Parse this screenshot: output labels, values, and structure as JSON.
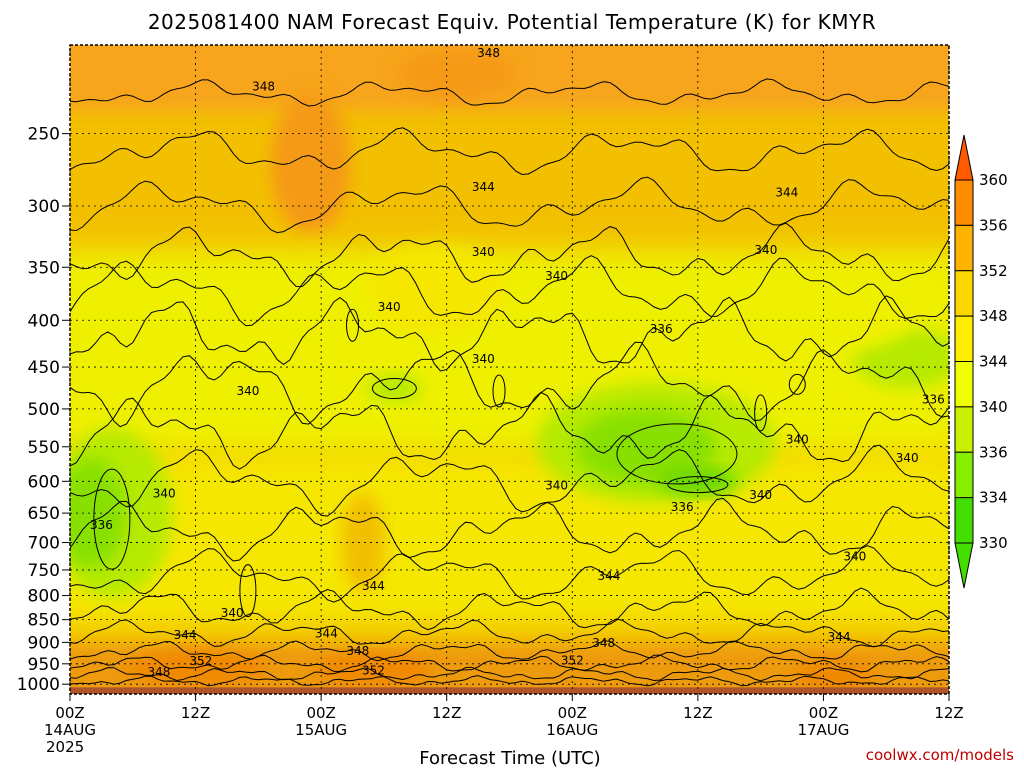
{
  "chart_data": {
    "type": "heatmap",
    "title": "2025081400 NAM Forecast Equiv. Potential Temperature (K) for KMYR",
    "xlabel": "Forecast Time (UTC)",
    "ylabel": "",
    "y_scale": "log-pressure",
    "ylim": [
      1025,
      200
    ],
    "y_ticks": [
      250,
      300,
      350,
      400,
      450,
      500,
      550,
      600,
      650,
      700,
      750,
      800,
      850,
      900,
      950,
      1000
    ],
    "xlim_hours": [
      0,
      84
    ],
    "x_ticks": [
      {
        "hour": 0,
        "label": "00Z",
        "sub": "14AUG",
        "sub2": "2025"
      },
      {
        "hour": 12,
        "label": "12Z",
        "sub": "",
        "sub2": ""
      },
      {
        "hour": 24,
        "label": "00Z",
        "sub": "15AUG",
        "sub2": ""
      },
      {
        "hour": 36,
        "label": "12Z",
        "sub": "",
        "sub2": ""
      },
      {
        "hour": 48,
        "label": "00Z",
        "sub": "16AUG",
        "sub2": ""
      },
      {
        "hour": 60,
        "label": "12Z",
        "sub": "",
        "sub2": ""
      },
      {
        "hour": 72,
        "label": "00Z",
        "sub": "17AUG",
        "sub2": ""
      },
      {
        "hour": 84,
        "label": "12Z",
        "sub": "",
        "sub2": ""
      }
    ],
    "grid": true,
    "colorbar": {
      "levels": [
        330,
        334,
        336,
        340,
        344,
        348,
        352,
        356,
        360
      ],
      "colors": [
        "#44dd00",
        "#88ee00",
        "#c8f000",
        "#eeff00",
        "#ffee00",
        "#ffd700",
        "#ffb300",
        "#ff8c00",
        "#ff5a00"
      ]
    },
    "background_colors": {
      "base": "#f2c000",
      "upper": "#f7a51e",
      "upper_deep": "#f59a16",
      "mid_high": "#f7cf00",
      "mid": "#eef000",
      "mid2": "#f5e700",
      "low_green": "#b6ea00",
      "green": "#88e000",
      "green_deep": "#6ad800",
      "boundary": "#ee9a08",
      "boundary_deep": "#f08800",
      "ground": "#b0552a"
    },
    "contour_labels": [
      {
        "text": "348",
        "hour": 40.0,
        "p": 204
      },
      {
        "text": "348",
        "hour": 18.5,
        "p": 222
      },
      {
        "text": "344",
        "hour": 39.5,
        "p": 286
      },
      {
        "text": "344",
        "hour": 68.5,
        "p": 290
      },
      {
        "text": "340",
        "hour": 39.5,
        "p": 337
      },
      {
        "text": "340",
        "hour": 46.5,
        "p": 358
      },
      {
        "text": "340",
        "hour": 66.5,
        "p": 335
      },
      {
        "text": "340",
        "hour": 30.5,
        "p": 387
      },
      {
        "text": "336",
        "hour": 56.5,
        "p": 409
      },
      {
        "text": "340",
        "hour": 39.5,
        "p": 441
      },
      {
        "text": "340",
        "hour": 17.0,
        "p": 478
      },
      {
        "text": "336",
        "hour": 82.5,
        "p": 488
      },
      {
        "text": "340",
        "hour": 69.5,
        "p": 540
      },
      {
        "text": "340",
        "hour": 80.0,
        "p": 566
      },
      {
        "text": "340",
        "hour": 46.5,
        "p": 606
      },
      {
        "text": "340",
        "hour": 9.0,
        "p": 619
      },
      {
        "text": "340",
        "hour": 66.0,
        "p": 621
      },
      {
        "text": "336",
        "hour": 58.5,
        "p": 640
      },
      {
        "text": "336",
        "hour": 3.0,
        "p": 670
      },
      {
        "text": "340",
        "hour": 75.0,
        "p": 725
      },
      {
        "text": "344",
        "hour": 51.5,
        "p": 762
      },
      {
        "text": "344",
        "hour": 29.0,
        "p": 781
      },
      {
        "text": "340",
        "hour": 15.5,
        "p": 836
      },
      {
        "text": "344",
        "hour": 11.0,
        "p": 883
      },
      {
        "text": "344",
        "hour": 24.5,
        "p": 880
      },
      {
        "text": "344",
        "hour": 73.5,
        "p": 888
      },
      {
        "text": "348",
        "hour": 51.0,
        "p": 901
      },
      {
        "text": "348",
        "hour": 27.5,
        "p": 920
      },
      {
        "text": "352",
        "hour": 12.5,
        "p": 943
      },
      {
        "text": "352",
        "hour": 48.0,
        "p": 942
      },
      {
        "text": "352",
        "hour": 29.0,
        "p": 966
      },
      {
        "text": "348",
        "hour": 8.5,
        "p": 970
      }
    ]
  },
  "credit": "coolwx.com/models"
}
